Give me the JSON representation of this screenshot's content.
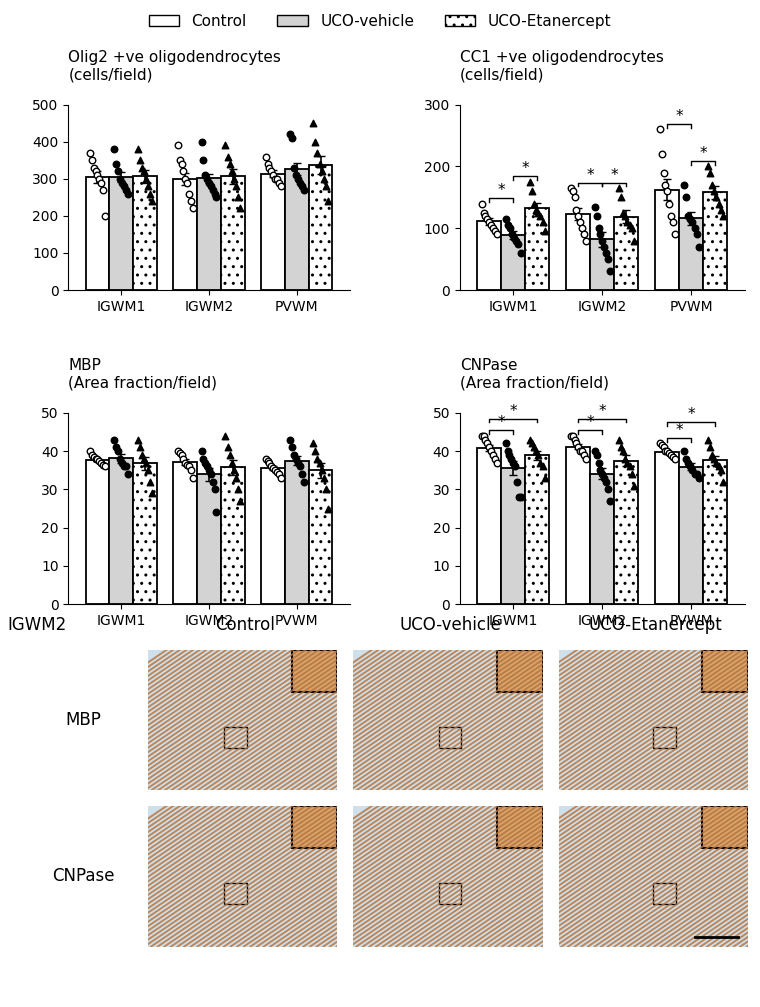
{
  "chart_data": [
    {
      "type": "bar",
      "title": "Olig2 +ve oligodendrocytes\n(cells/field)",
      "legend": "upper center",
      "categories": [
        "IGWM1",
        "IGWM2",
        "PVWM"
      ],
      "ylim": [
        0,
        500
      ],
      "yticks": [
        0,
        100,
        200,
        300,
        400,
        500
      ],
      "series": [
        {
          "name": "Control",
          "color": "#ffffff",
          "marker": "open_circle",
          "values": [
            305,
            300,
            314
          ],
          "errors": [
            17,
            17,
            10
          ],
          "points": [
            [
              370,
              350,
              330,
              320,
              310,
              300,
              290,
              270,
              200
            ],
            [
              390,
              350,
              340,
              320,
              300,
              290,
              260,
              240,
              220
            ],
            [
              360,
              340,
              330,
              320,
              310,
              300,
              300,
              290,
              280
            ]
          ]
        },
        {
          "name": "UCO-vehicle",
          "color": "#d3d3d3",
          "marker": "circle",
          "values": [
            305,
            301,
            326
          ],
          "errors": [
            14,
            12,
            16
          ],
          "points": [
            [
              380,
              340,
              320,
              300,
              290,
              280,
              270,
              260
            ],
            [
              400,
              350,
              310,
              300,
              290,
              280,
              270,
              260,
              250
            ],
            [
              420,
              410,
              330,
              310,
              300,
              290,
              280,
              270
            ]
          ]
        },
        {
          "name": "UCO-Etanercept",
          "color": "#ffffff",
          "marker": "triangle",
          "values": [
            307,
            307,
            337
          ],
          "errors": [
            18,
            20,
            24
          ],
          "points": [
            [
              380,
              350,
              330,
              320,
              300,
              280,
              260,
              240
            ],
            [
              390,
              360,
              340,
              320,
              300,
              280,
              250,
              220
            ],
            [
              450,
              400,
              370,
              340,
              320,
              300,
              280,
              240
            ]
          ]
        }
      ],
      "significance": []
    },
    {
      "type": "bar",
      "title": "CC1 +ve oligodendrocytes\n(cells/field)",
      "categories": [
        "IGWM1",
        "IGWM2",
        "PVWM"
      ],
      "ylim": [
        0,
        300
      ],
      "yticks": [
        0,
        100,
        200,
        300
      ],
      "series": [
        {
          "name": "Control",
          "color": "#ffffff",
          "marker": "open_circle",
          "values": [
            111,
            123,
            162
          ],
          "errors": [
            6,
            10,
            17
          ],
          "points": [
            [
              140,
              125,
              120,
              115,
              110,
              105,
              100,
              95,
              90
            ],
            [
              165,
              160,
              150,
              130,
              120,
              110,
              100,
              90,
              80
            ],
            [
              260,
              220,
              190,
              170,
              160,
              140,
              120,
              110,
              90
            ]
          ]
        },
        {
          "name": "UCO-vehicle",
          "color": "#d3d3d3",
          "marker": "circle",
          "values": [
            89,
            82,
            116
          ],
          "errors": [
            7,
            12,
            11
          ],
          "points": [
            [
              115,
              105,
              100,
              90,
              85,
              80,
              75,
              60
            ],
            [
              135,
              120,
              100,
              90,
              80,
              70,
              60,
              50,
              30
            ],
            [
              170,
              150,
              120,
              115,
              110,
              100,
              90,
              70
            ]
          ]
        },
        {
          "name": "UCO-Etanercept",
          "color": "#ffffff",
          "marker": "triangle",
          "values": [
            132,
            119,
            158
          ],
          "errors": [
            9,
            10,
            11
          ],
          "points": [
            [
              175,
              160,
              140,
              130,
              125,
              120,
              110,
              95
            ],
            [
              165,
              150,
              125,
              120,
              110,
              105,
              100,
              80
            ],
            [
              200,
              190,
              170,
              160,
              150,
              140,
              130,
              120
            ]
          ]
        }
      ],
      "significance": [
        {
          "category": "IGWM1",
          "from": "Control",
          "to": "UCO-vehicle",
          "label": "*"
        },
        {
          "category": "IGWM1",
          "from": "UCO-vehicle",
          "to": "UCO-Etanercept",
          "label": "*"
        },
        {
          "category": "IGWM2",
          "from": "Control",
          "to": "UCO-vehicle",
          "label": "*"
        },
        {
          "category": "IGWM2",
          "from": "UCO-vehicle",
          "to": "UCO-Etanercept",
          "label": "*"
        },
        {
          "category": "PVWM",
          "from": "Control",
          "to": "UCO-vehicle",
          "label": "*"
        },
        {
          "category": "PVWM",
          "from": "UCO-vehicle",
          "to": "UCO-Etanercept",
          "label": "*"
        }
      ]
    },
    {
      "type": "bar",
      "title": "MBP\n(Area fraction/field)",
      "categories": [
        "IGWM1",
        "IGWM2",
        "PVWM"
      ],
      "ylim": [
        0,
        50
      ],
      "yticks": [
        0,
        10,
        20,
        30,
        40,
        50
      ],
      "series": [
        {
          "name": "Control",
          "color": "#ffffff",
          "marker": "open_circle",
          "values": [
            37.8,
            37.1,
            35.6
          ],
          "errors": [
            0.5,
            0.8,
            0.6
          ],
          "points": [
            [
              40,
              39,
              38.5,
              38,
              38,
              37.5,
              37,
              36.5,
              36
            ],
            [
              40,
              39.5,
              39,
              38,
              37,
              36.5,
              36,
              35,
              33
            ],
            [
              38,
              37.5,
              37,
              36,
              35.5,
              35,
              34.5,
              34,
              33
            ]
          ]
        },
        {
          "name": "UCO-vehicle",
          "color": "#d3d3d3",
          "marker": "circle",
          "values": [
            38.1,
            34.0,
            37.5
          ],
          "errors": [
            1.1,
            1.7,
            1.2
          ],
          "points": [
            [
              43,
              41,
              40,
              38,
              37,
              36,
              36,
              34
            ],
            [
              40,
              38,
              37,
              36,
              35,
              34,
              32,
              30,
              24
            ],
            [
              43,
              41,
              39,
              38,
              37,
              36,
              34,
              32
            ]
          ]
        },
        {
          "name": "UCO-Etanercept",
          "color": "#ffffff",
          "marker": "triangle",
          "values": [
            36.8,
            35.8,
            35.0
          ],
          "errors": [
            1.6,
            2.0,
            2.0
          ],
          "points": [
            [
              43,
              41,
              39,
              38,
              37,
              35,
              32,
              29
            ],
            [
              44,
              41,
              39,
              37,
              35,
              33,
              30,
              27
            ],
            [
              42,
              40,
              38,
              37,
              35,
              33,
              30,
              25
            ]
          ]
        }
      ],
      "significance": []
    },
    {
      "type": "bar",
      "title": "CNPase\n(Area fraction/field)",
      "categories": [
        "IGWM1",
        "IGWM2",
        "PVWM"
      ],
      "ylim": [
        0,
        50
      ],
      "yticks": [
        0,
        10,
        20,
        30,
        40,
        50
      ],
      "series": [
        {
          "name": "Control",
          "color": "#ffffff",
          "marker": "open_circle",
          "values": [
            40.9,
            41.2,
            39.9
          ],
          "errors": [
            0.8,
            0.7,
            0.5
          ],
          "points": [
            [
              44,
              44,
              43,
              42,
              41,
              40,
              39,
              38,
              37
            ],
            [
              44,
              44,
              43,
              42,
              41,
              40,
              40,
              39,
              38
            ],
            [
              42,
              41.5,
              41,
              40,
              40,
              39.5,
              39,
              38.5,
              38
            ]
          ]
        },
        {
          "name": "UCO-vehicle",
          "color": "#d3d3d3",
          "marker": "circle",
          "values": [
            35.6,
            34.1,
            35.9
          ],
          "errors": [
            1.8,
            1.5,
            0.9
          ],
          "points": [
            [
              42,
              40,
              39,
              38,
              37,
              36,
              32,
              28,
              28
            ],
            [
              40,
              39,
              37,
              35,
              34,
              33,
              32,
              30,
              27
            ],
            [
              40,
              38,
              37,
              36,
              35,
              34,
              34,
              33
            ]
          ]
        },
        {
          "name": "UCO-Etanercept",
          "color": "#ffffff",
          "marker": "triangle",
          "values": [
            38.9,
            37.5,
            37.6
          ],
          "errors": [
            1.2,
            1.4,
            1.1
          ],
          "points": [
            [
              43,
              42,
              41,
              40,
              39,
              37,
              36,
              33
            ],
            [
              43,
              41,
              40,
              38,
              37,
              36,
              34,
              31
            ],
            [
              43,
              41,
              39,
              38,
              37,
              36,
              35,
              32
            ]
          ]
        }
      ],
      "significance": [
        {
          "category": "IGWM1",
          "from": "Control",
          "to": "UCO-vehicle",
          "label": "*"
        },
        {
          "category": "IGWM1",
          "from": "Control",
          "to": "UCO-Etanercept",
          "label": "*"
        },
        {
          "category": "IGWM2",
          "from": "Control",
          "to": "UCO-vehicle",
          "label": "*"
        },
        {
          "category": "IGWM2",
          "from": "Control",
          "to": "UCO-Etanercept",
          "label": "*"
        },
        {
          "category": "PVWM",
          "from": "Control",
          "to": "UCO-vehicle",
          "label": "*"
        },
        {
          "category": "PVWM",
          "from": "Control",
          "to": "UCO-Etanercept",
          "label": "*"
        }
      ]
    }
  ],
  "micrographs": {
    "region": "IGWM2",
    "columns": [
      "Control",
      "UCO-vehicle",
      "UCO-Etanercept"
    ],
    "rows": [
      "MBP",
      "CNPase"
    ]
  }
}
